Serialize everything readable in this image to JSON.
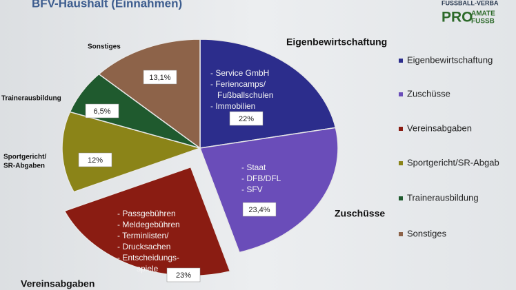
{
  "chart_data": {
    "type": "pie",
    "title": "BFV-Haushalt (Einnahmen)",
    "logo": {
      "top": "FUSSBALL-VERBA",
      "pro": "PRO",
      "line1": "AMATE",
      "line2": "FUSSB"
    },
    "categories": [
      "Eigenbewirtschaftung",
      "Zuschüsse",
      "Vereinsabgaben",
      "Sportgericht/SR-Abgab",
      "Trainerausbildung",
      "Sonstiges"
    ],
    "values": [
      22,
      23.4,
      23,
      12,
      6.5,
      13.1
    ],
    "value_labels": [
      "22%",
      "23,4%",
      "23%",
      "12%",
      "6,5%",
      "13,1%"
    ],
    "colors": [
      "#2c2d8c",
      "#6a4db9",
      "#8a1c12",
      "#8b8418",
      "#1f5a2e",
      "#8d6349"
    ],
    "slice_labels": [
      [
        "Eigenbewirtschaftung"
      ],
      [
        "Zuschüsse"
      ],
      [
        "Vereinsabgaben"
      ],
      [
        "Sportgericht/",
        "SR-Abgaben"
      ],
      [
        "Trainerausbildung"
      ],
      [
        "Sonstiges"
      ]
    ],
    "slice_details": [
      [
        "- Service GmbH",
        "- Feriencamps/",
        "Fußballschulen",
        "- Immobilien"
      ],
      [
        "- Staat",
        "- DFB/DFL",
        "- SFV"
      ],
      [
        "- Passgebühren",
        "- Meldegebühren",
        "- Terminlisten/",
        "- Drucksachen",
        "- Entscheidungs-",
        "spiele"
      ],
      null,
      null,
      null
    ],
    "exploded": [
      false,
      false,
      true,
      false,
      false,
      false
    ],
    "legend": "right"
  }
}
